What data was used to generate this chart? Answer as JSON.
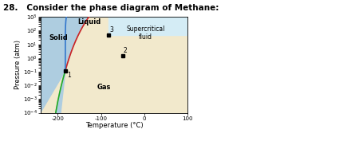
{
  "title": "28.   Consider the phase diagram of Methane:",
  "xlabel": "Temperature (°C)",
  "ylabel": "Pressure (atm)",
  "xlim": [
    -240,
    100
  ],
  "ylog_min": -4,
  "ylog_max": 3,
  "solid_liq_color": "#aecde0",
  "gas_color": "#f2e9cc",
  "supercritical_color": "#d4ecf5",
  "triple_point_T": -182.5,
  "triple_point_P": 0.117,
  "critical_point_T": -82.6,
  "critical_point_P": 45.8,
  "point2_T": -50,
  "point2_P": 1.5,
  "solid_label": "Solid",
  "liquid_label": "Liquid",
  "gas_label": "Gas",
  "supercritical_label": "Supercritical\nfluid",
  "line_green": "#22aa22",
  "line_red": "#cc2222",
  "line_blue": "#3377cc"
}
